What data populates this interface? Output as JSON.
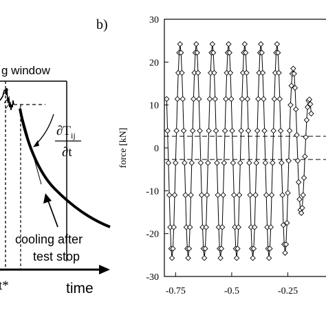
{
  "panel_a": {
    "window_label": "g window",
    "deriv_num": "∂T",
    "deriv_sub": "ij",
    "deriv_den": "∂t",
    "annotation_line1": "cooling after",
    "annotation_line2": "test stop",
    "t_label": "t*",
    "x_axis_label": "time"
  },
  "panel_b": {
    "label": "b)"
  },
  "chart_data": {
    "type": "line",
    "title": "",
    "xlabel": "",
    "ylabel": "force [kN]",
    "xlim": [
      -0.8,
      -0.08
    ],
    "ylim": [
      -30,
      30
    ],
    "x_ticks": [
      -0.75,
      -0.5,
      -0.25
    ],
    "x_tick_labels": [
      "-0.75",
      "-0.5",
      "-0.25"
    ],
    "y_ticks": [
      -30,
      -20,
      -10,
      0,
      10,
      20,
      30
    ],
    "y_tick_labels": [
      "-30",
      "-20",
      "-10",
      "0",
      "10",
      "20",
      "30"
    ],
    "dashed_reference_lines": [
      2.7,
      -2.7
    ],
    "grid": false,
    "legend": "none",
    "marker": "diamond",
    "series": [
      {
        "values": [
          {
            "x": -0.79,
            "y": 11.4
          },
          {
            "x": -0.786,
            "y": 4.0
          },
          {
            "x": -0.782,
            "y": -3.5
          },
          {
            "x": -0.778,
            "y": -11.0
          },
          {
            "x": -0.774,
            "y": -18.5
          },
          {
            "x": -0.77,
            "y": -23.5
          },
          {
            "x": -0.766,
            "y": -25.7
          },
          {
            "x": -0.762,
            "y": -23.5
          },
          {
            "x": -0.758,
            "y": -18.5
          },
          {
            "x": -0.754,
            "y": -11.0
          },
          {
            "x": -0.75,
            "y": -3.5
          },
          {
            "x": -0.746,
            "y": 4.0
          },
          {
            "x": -0.742,
            "y": 11.4
          },
          {
            "x": -0.738,
            "y": 17.5
          },
          {
            "x": -0.734,
            "y": 22.2
          },
          {
            "x": -0.73,
            "y": 24.2
          },
          {
            "x": -0.726,
            "y": 22.2
          },
          {
            "x": -0.722,
            "y": 17.5
          },
          {
            "x": -0.718,
            "y": 11.4
          },
          {
            "x": -0.714,
            "y": 4.0
          },
          {
            "x": -0.71,
            "y": -3.5
          },
          {
            "x": -0.706,
            "y": -11.0
          },
          {
            "x": -0.702,
            "y": -18.5
          },
          {
            "x": -0.698,
            "y": -23.5
          },
          {
            "x": -0.694,
            "y": -25.7
          },
          {
            "x": -0.69,
            "y": -23.5
          },
          {
            "x": -0.686,
            "y": -18.5
          },
          {
            "x": -0.682,
            "y": -11.0
          },
          {
            "x": -0.678,
            "y": -3.5
          },
          {
            "x": -0.674,
            "y": 4.0
          },
          {
            "x": -0.67,
            "y": 11.4
          },
          {
            "x": -0.666,
            "y": 17.5
          },
          {
            "x": -0.662,
            "y": 22.2
          },
          {
            "x": -0.658,
            "y": 24.2
          },
          {
            "x": -0.654,
            "y": 22.2
          },
          {
            "x": -0.65,
            "y": 17.5
          },
          {
            "x": -0.646,
            "y": 11.4
          },
          {
            "x": -0.642,
            "y": 4.0
          },
          {
            "x": -0.638,
            "y": -3.5
          },
          {
            "x": -0.634,
            "y": -11.0
          },
          {
            "x": -0.63,
            "y": -18.5
          },
          {
            "x": -0.626,
            "y": -23.5
          },
          {
            "x": -0.622,
            "y": -25.7
          },
          {
            "x": -0.618,
            "y": -23.5
          },
          {
            "x": -0.614,
            "y": -18.5
          },
          {
            "x": -0.61,
            "y": -11.0
          },
          {
            "x": -0.606,
            "y": -3.5
          },
          {
            "x": -0.602,
            "y": 4.0
          },
          {
            "x": -0.598,
            "y": 11.4
          },
          {
            "x": -0.594,
            "y": 17.5
          },
          {
            "x": -0.59,
            "y": 22.2
          },
          {
            "x": -0.586,
            "y": 24.2
          },
          {
            "x": -0.582,
            "y": 22.2
          },
          {
            "x": -0.578,
            "y": 17.5
          },
          {
            "x": -0.574,
            "y": 11.4
          },
          {
            "x": -0.57,
            "y": 4.0
          },
          {
            "x": -0.566,
            "y": -3.5
          },
          {
            "x": -0.562,
            "y": -11.0
          },
          {
            "x": -0.558,
            "y": -18.5
          },
          {
            "x": -0.554,
            "y": -23.5
          },
          {
            "x": -0.55,
            "y": -25.7
          },
          {
            "x": -0.546,
            "y": -23.5
          },
          {
            "x": -0.542,
            "y": -18.5
          },
          {
            "x": -0.538,
            "y": -11.0
          },
          {
            "x": -0.534,
            "y": -3.5
          },
          {
            "x": -0.53,
            "y": 4.0
          },
          {
            "x": -0.526,
            "y": 11.4
          },
          {
            "x": -0.522,
            "y": 17.5
          },
          {
            "x": -0.518,
            "y": 22.2
          },
          {
            "x": -0.514,
            "y": 24.2
          },
          {
            "x": -0.51,
            "y": 22.2
          },
          {
            "x": -0.506,
            "y": 17.5
          },
          {
            "x": -0.502,
            "y": 11.4
          },
          {
            "x": -0.498,
            "y": 4.0
          },
          {
            "x": -0.494,
            "y": -3.5
          },
          {
            "x": -0.49,
            "y": -11.0
          },
          {
            "x": -0.486,
            "y": -18.5
          },
          {
            "x": -0.482,
            "y": -23.5
          },
          {
            "x": -0.478,
            "y": -25.7
          },
          {
            "x": -0.474,
            "y": -23.5
          },
          {
            "x": -0.47,
            "y": -18.5
          },
          {
            "x": -0.466,
            "y": -11.0
          },
          {
            "x": -0.462,
            "y": -3.5
          },
          {
            "x": -0.458,
            "y": 4.0
          },
          {
            "x": -0.454,
            "y": 11.4
          },
          {
            "x": -0.45,
            "y": 17.5
          },
          {
            "x": -0.446,
            "y": 22.2
          },
          {
            "x": -0.442,
            "y": 24.2
          },
          {
            "x": -0.438,
            "y": 22.2
          },
          {
            "x": -0.434,
            "y": 17.5
          },
          {
            "x": -0.43,
            "y": 11.4
          },
          {
            "x": -0.426,
            "y": 4.0
          },
          {
            "x": -0.422,
            "y": -3.5
          },
          {
            "x": -0.418,
            "y": -11.0
          },
          {
            "x": -0.414,
            "y": -18.5
          },
          {
            "x": -0.41,
            "y": -23.5
          },
          {
            "x": -0.406,
            "y": -25.7
          },
          {
            "x": -0.402,
            "y": -23.5
          },
          {
            "x": -0.398,
            "y": -18.5
          },
          {
            "x": -0.394,
            "y": -11.0
          },
          {
            "x": -0.39,
            "y": -3.5
          },
          {
            "x": -0.386,
            "y": 4.0
          },
          {
            "x": -0.382,
            "y": 11.4
          },
          {
            "x": -0.378,
            "y": 17.5
          },
          {
            "x": -0.374,
            "y": 22.2
          },
          {
            "x": -0.37,
            "y": 24.2
          },
          {
            "x": -0.366,
            "y": 22.2
          },
          {
            "x": -0.362,
            "y": 17.5
          },
          {
            "x": -0.358,
            "y": 11.4
          },
          {
            "x": -0.354,
            "y": 4.0
          },
          {
            "x": -0.35,
            "y": -3.5
          },
          {
            "x": -0.346,
            "y": -11.0
          },
          {
            "x": -0.342,
            "y": -18.5
          },
          {
            "x": -0.338,
            "y": -23.5
          },
          {
            "x": -0.334,
            "y": -25.7
          },
          {
            "x": -0.33,
            "y": -23.5
          },
          {
            "x": -0.326,
            "y": -18.5
          },
          {
            "x": -0.322,
            "y": -11.0
          },
          {
            "x": -0.318,
            "y": -3.5
          },
          {
            "x": -0.314,
            "y": 4.0
          },
          {
            "x": -0.31,
            "y": 11.4
          },
          {
            "x": -0.306,
            "y": 17.5
          },
          {
            "x": -0.302,
            "y": 22.2
          },
          {
            "x": -0.298,
            "y": 24.2
          },
          {
            "x": -0.294,
            "y": 22.2
          },
          {
            "x": -0.29,
            "y": 17.5
          },
          {
            "x": -0.286,
            "y": 11.4
          },
          {
            "x": -0.282,
            "y": 4.0
          },
          {
            "x": -0.278,
            "y": -3.5
          },
          {
            "x": -0.274,
            "y": -11.0
          },
          {
            "x": -0.27,
            "y": -18.0
          },
          {
            "x": -0.266,
            "y": -22.5
          },
          {
            "x": -0.262,
            "y": -24.5
          },
          {
            "x": -0.258,
            "y": -22.5
          },
          {
            "x": -0.254,
            "y": -17.5
          },
          {
            "x": -0.25,
            "y": -10.5
          },
          {
            "x": -0.246,
            "y": -3.0
          },
          {
            "x": -0.242,
            "y": 4.0
          },
          {
            "x": -0.238,
            "y": 10.0
          },
          {
            "x": -0.234,
            "y": 14.5
          },
          {
            "x": -0.23,
            "y": 17.3
          },
          {
            "x": -0.226,
            "y": 18.5
          },
          {
            "x": -0.222,
            "y": 17.3
          },
          {
            "x": -0.218,
            "y": 14.0
          },
          {
            "x": -0.214,
            "y": 9.0
          },
          {
            "x": -0.21,
            "y": 3.0
          },
          {
            "x": -0.206,
            "y": -3.0
          },
          {
            "x": -0.202,
            "y": -8.0
          },
          {
            "x": -0.198,
            "y": -12.0
          },
          {
            "x": -0.194,
            "y": -14.5
          },
          {
            "x": -0.19,
            "y": -15.2
          },
          {
            "x": -0.186,
            "y": -14.0
          },
          {
            "x": -0.182,
            "y": -11.0
          },
          {
            "x": -0.178,
            "y": -7.0
          },
          {
            "x": -0.174,
            "y": -2.0
          },
          {
            "x": -0.17,
            "y": 2.5
          },
          {
            "x": -0.166,
            "y": 6.5
          },
          {
            "x": -0.162,
            "y": 9.5
          },
          {
            "x": -0.158,
            "y": 11.0
          },
          {
            "x": -0.154,
            "y": 11.3
          },
          {
            "x": -0.15,
            "y": 10.2
          },
          {
            "x": -0.146,
            "y": 8.0
          }
        ]
      }
    ]
  }
}
